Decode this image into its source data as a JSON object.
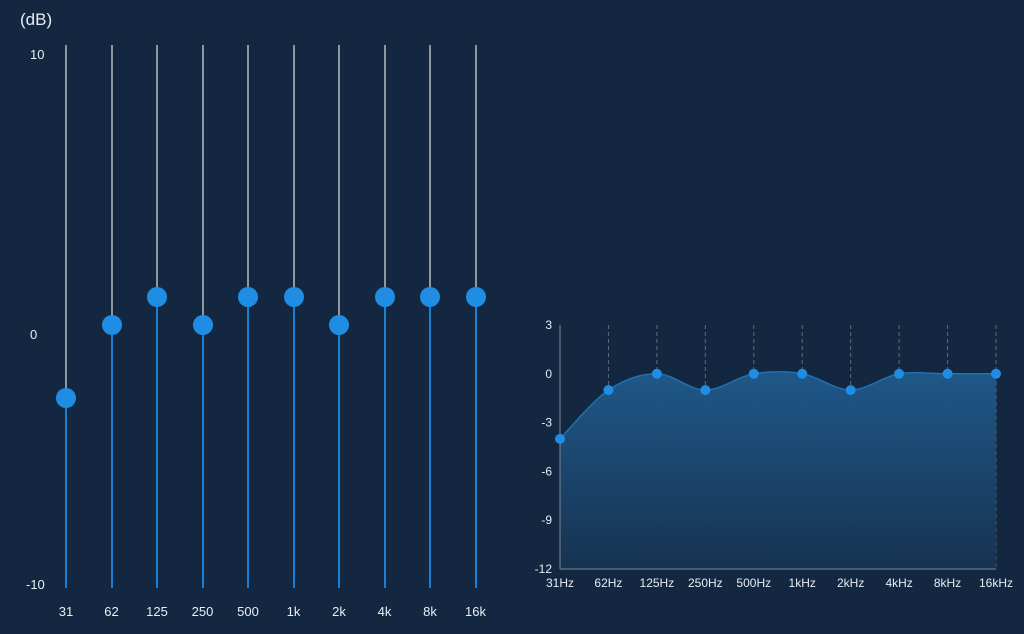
{
  "equalizer": {
    "unit_label": "(dB)",
    "scale": {
      "max_label": "10",
      "mid_label": "0",
      "min_label": "-10",
      "max": 10,
      "min": -10
    },
    "bands": [
      {
        "label": "31",
        "gain_db": -3
      },
      {
        "label": "62",
        "gain_db": -0.3
      },
      {
        "label": "125",
        "gain_db": 0.7
      },
      {
        "label": "250",
        "gain_db": -0.3
      },
      {
        "label": "500",
        "gain_db": 0.7
      },
      {
        "label": "1k",
        "gain_db": 0.7
      },
      {
        "label": "2k",
        "gain_db": -0.3
      },
      {
        "label": "4k",
        "gain_db": 0.7
      },
      {
        "label": "8k",
        "gain_db": 0.7
      },
      {
        "label": "16k",
        "gain_db": 0.7
      }
    ],
    "colors": {
      "background": "#132840",
      "track_inactive": "#8c97a3",
      "track_active": "#1b7fd6",
      "thumb": "#1f8de3"
    }
  },
  "chart_data": {
    "type": "area",
    "categories": [
      "31Hz",
      "62Hz",
      "125Hz",
      "250Hz",
      "500Hz",
      "1kHz",
      "2kHz",
      "4kHz",
      "8kHz",
      "16kHz"
    ],
    "values": [
      -4,
      -1,
      0,
      -1,
      0,
      0,
      -1,
      0,
      0,
      0
    ],
    "ylim": [
      -12,
      3
    ],
    "yticks": [
      "3",
      "0",
      "-3",
      "-6",
      "-9",
      "-12"
    ],
    "grid": "vertical-dashed",
    "title": "",
    "xlabel": "",
    "ylabel": "",
    "colors": {
      "line": "#2170b0",
      "point": "#1f8de3",
      "grid": "#5a6b7d"
    }
  }
}
